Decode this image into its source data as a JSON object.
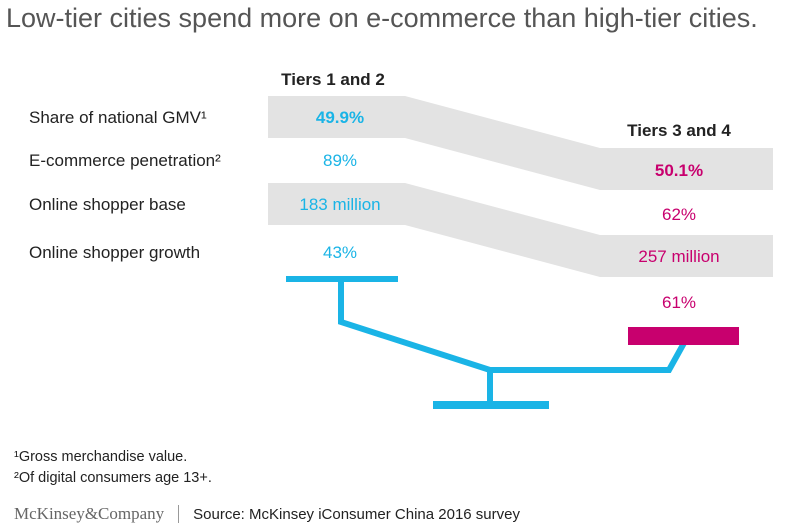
{
  "title": "Low-tier cities spend more on e-commerce than high-tier cities.",
  "colors": {
    "tier12": "#1ab4e6",
    "tier34": "#c8006e",
    "band": "#e3e3e3",
    "title": "#555555"
  },
  "chart_data": {
    "type": "table",
    "title": "Low-tier cities spend more on e-commerce than high-tier cities.",
    "metrics": [
      "Share of national GMV¹",
      "E-commerce penetration²",
      "Online shopper base",
      "Online shopper growth"
    ],
    "series": [
      {
        "name": "Tiers 1 and 2",
        "labels": [
          "49.9%",
          "89%",
          "183 million",
          "43%"
        ],
        "values": [
          49.9,
          89,
          183,
          43
        ],
        "units": [
          "%",
          "%",
          "million",
          "%"
        ]
      },
      {
        "name": "Tiers 3 and 4",
        "labels": [
          "50.1%",
          "62%",
          "257 million",
          "61%"
        ],
        "values": [
          50.1,
          62,
          257,
          61
        ],
        "units": [
          "%",
          "%",
          "million",
          "%"
        ]
      }
    ],
    "highlight_metric": "Share of national GMV¹",
    "scale_graphic": "balance tipping toward Tiers 3 and 4"
  },
  "footnotes": [
    "¹Gross merchandise value.",
    "²Of digital consumers age 13+."
  ],
  "brand": "McKinsey&Company",
  "source": "Source: McKinsey iConsumer China 2016 survey"
}
